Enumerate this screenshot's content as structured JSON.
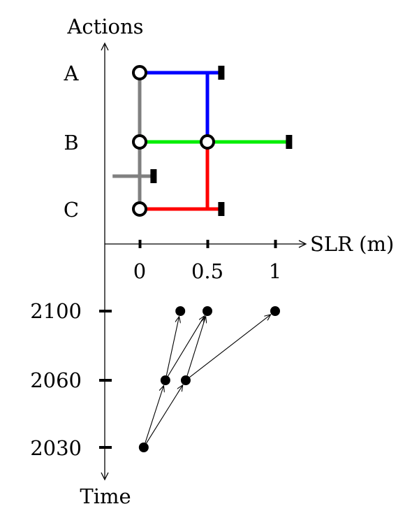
{
  "chart_data": {
    "type": "diagram",
    "title": "",
    "axes": {
      "actions_label": "Actions",
      "slr_label": "SLR (m)",
      "time_label": "Time"
    },
    "slr_ticks": [
      {
        "value": 0,
        "label": "0"
      },
      {
        "value": 0.5,
        "label": "0.5"
      },
      {
        "value": 1,
        "label": "1"
      }
    ],
    "actions": [
      {
        "name": "A",
        "label": "A"
      },
      {
        "name": "B",
        "label": "B"
      },
      {
        "name": "C",
        "label": "C"
      }
    ],
    "time_ticks": [
      {
        "year": 2100,
        "label": "2100"
      },
      {
        "year": 2060,
        "label": "2060"
      },
      {
        "year": 2030,
        "label": "2030"
      }
    ],
    "pathways": [
      {
        "color": "#0000ff",
        "points": [
          [
            "A",
            0
          ],
          [
            "A",
            0.6
          ]
        ]
      },
      {
        "color": "#0000ff",
        "points": [
          [
            "A",
            0.5
          ],
          [
            "B",
            0.5
          ]
        ]
      },
      {
        "color": "#00ee00",
        "points": [
          [
            "B",
            0
          ],
          [
            "B",
            1.1
          ]
        ]
      },
      {
        "color": "#ff0000",
        "points": [
          [
            "C",
            0
          ],
          [
            "C",
            0.6
          ]
        ]
      },
      {
        "color": "#ff0000",
        "points": [
          [
            "B",
            0.5
          ],
          [
            "C",
            0.5
          ]
        ]
      },
      {
        "color": "#808080",
        "points": [
          [
            "A",
            0
          ],
          [
            "C",
            0
          ]
        ]
      },
      {
        "color": "#808080",
        "points": [
          [
            "BC",
            -0.2
          ],
          [
            "BC",
            0.1
          ]
        ]
      }
    ],
    "transfer_nodes": [
      {
        "action": "A",
        "slr": 0
      },
      {
        "action": "B",
        "slr": 0
      },
      {
        "action": "C",
        "slr": 0
      },
      {
        "action": "B",
        "slr": 0.5
      }
    ],
    "tipping_points": [
      {
        "action": "A",
        "slr": 0.6
      },
      {
        "action": "B",
        "slr": 1.1
      },
      {
        "action": "C",
        "slr": 0.6
      },
      {
        "action": "BC",
        "slr": 0.1
      }
    ],
    "time_points": [
      {
        "id": "p2030",
        "year": 2030,
        "slr": 0.03
      },
      {
        "id": "p2060a",
        "year": 2060,
        "slr": 0.19
      },
      {
        "id": "p2060b",
        "year": 2060,
        "slr": 0.34
      },
      {
        "id": "p2100a",
        "year": 2100,
        "slr": 0.3
      },
      {
        "id": "p2100b",
        "year": 2100,
        "slr": 0.5
      },
      {
        "id": "p2100c",
        "year": 2100,
        "slr": 1.0
      }
    ],
    "transitions": [
      [
        "p2030",
        "p2060a"
      ],
      [
        "p2030",
        "p2060b"
      ],
      [
        "p2060a",
        "p2100a"
      ],
      [
        "p2060a",
        "p2100b"
      ],
      [
        "p2060b",
        "p2100b"
      ],
      [
        "p2060b",
        "p2100c"
      ]
    ]
  }
}
